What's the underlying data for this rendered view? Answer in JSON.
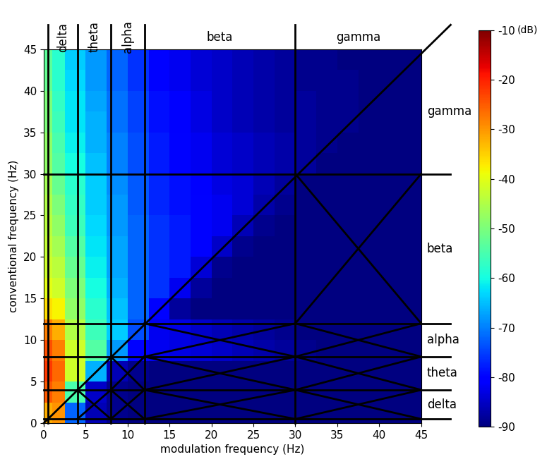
{
  "chart_data": {
    "type": "heatmap",
    "x_label": "modulation frequency (Hz)",
    "y_label": "conventional frequency (Hz)",
    "x_edges": [
      0,
      1,
      2.5,
      5,
      7.5,
      10,
      12.5,
      15,
      17.5,
      20,
      22.5,
      25,
      27.5,
      30,
      32.5,
      35,
      37.5,
      40,
      42.5,
      45
    ],
    "y_edges": [
      0,
      2.5,
      5,
      7.5,
      10,
      12.5,
      15,
      17.5,
      20,
      22.5,
      25,
      27.5,
      30,
      32.5,
      35,
      37.5,
      40,
      42.5,
      45
    ],
    "cells": [
      [
        -32,
        -30,
        -72,
        -86,
        -89,
        -90,
        -90,
        -90,
        -90,
        -90,
        -90,
        -90,
        -90,
        -90,
        -90,
        -90,
        -90,
        -90,
        -90
      ],
      [
        -25,
        -28,
        -55,
        -85,
        -89,
        -90,
        -90,
        -90,
        -90,
        -90,
        -90,
        -90,
        -90,
        -90,
        -90,
        -90,
        -90,
        -90,
        -90
      ],
      [
        -22,
        -26,
        -42,
        -66,
        -86,
        -89,
        -90,
        -90,
        -90,
        -90,
        -90,
        -90,
        -90,
        -90,
        -90,
        -90,
        -90,
        -90,
        -90
      ],
      [
        -24,
        -28,
        -42,
        -54,
        -68,
        -80,
        -82,
        -83,
        -84,
        -85,
        -86,
        -87,
        -88,
        -89,
        -90,
        -90,
        -90,
        -90,
        -90
      ],
      [
        -28,
        -32,
        -45,
        -56,
        -64,
        -74,
        -82,
        -83,
        -85,
        -86,
        -87,
        -88,
        -89,
        -90,
        -90,
        -90,
        -90,
        -90,
        -90
      ],
      [
        -36,
        -38,
        -48,
        -58,
        -65,
        -72,
        -80,
        -88,
        -90,
        -90,
        -90,
        -90,
        -90,
        -90,
        -90,
        -90,
        -90,
        -90,
        -90
      ],
      [
        -40,
        -42,
        -50,
        -60,
        -66,
        -72,
        -76,
        -82,
        -88,
        -90,
        -90,
        -90,
        -90,
        -90,
        -90,
        -90,
        -90,
        -90,
        -90
      ],
      [
        -42,
        -44,
        -52,
        -61,
        -67,
        -72,
        -76,
        -78,
        -84,
        -89,
        -90,
        -90,
        -90,
        -90,
        -90,
        -90,
        -90,
        -90,
        -90
      ],
      [
        -43,
        -46,
        -54,
        -62,
        -67,
        -72,
        -76,
        -78,
        -80,
        -85,
        -89,
        -90,
        -90,
        -90,
        -90,
        -90,
        -90,
        -90,
        -90
      ],
      [
        -44,
        -48,
        -56,
        -63,
        -68,
        -72,
        -76,
        -78,
        -80,
        -82,
        -86,
        -89,
        -90,
        -90,
        -90,
        -90,
        -90,
        -90,
        -90
      ],
      [
        -45,
        -50,
        -57,
        -64,
        -68,
        -73,
        -77,
        -79,
        -80,
        -82,
        -84,
        -87,
        -89,
        -90,
        -90,
        -90,
        -90,
        -90,
        -90
      ],
      [
        -46,
        -52,
        -58,
        -64,
        -69,
        -73,
        -77,
        -79,
        -81,
        -83,
        -84,
        -86,
        -88,
        -90,
        -90,
        -90,
        -90,
        -90,
        -90
      ],
      [
        -48,
        -54,
        -60,
        -65,
        -70,
        -74,
        -78,
        -80,
        -82,
        -84,
        -85,
        -86,
        -87,
        -88,
        -90,
        -90,
        -90,
        -90,
        -90
      ],
      [
        -48,
        -55,
        -61,
        -66,
        -70,
        -74,
        -78,
        -80,
        -82,
        -84,
        -85,
        -86,
        -87,
        -88,
        -89,
        -90,
        -90,
        -90,
        -90
      ],
      [
        -50,
        -56,
        -62,
        -66,
        -71,
        -75,
        -79,
        -81,
        -83,
        -85,
        -86,
        -87,
        -88,
        -88,
        -89,
        -89,
        -90,
        -90,
        -90
      ],
      [
        -50,
        -57,
        -62,
        -67,
        -71,
        -75,
        -79,
        -81,
        -83,
        -85,
        -86,
        -87,
        -88,
        -88,
        -89,
        -89,
        -90,
        -90,
        -90
      ],
      [
        -52,
        -58,
        -63,
        -68,
        -72,
        -76,
        -80,
        -82,
        -84,
        -85,
        -86,
        -87,
        -88,
        -89,
        -89,
        -89,
        -90,
        -90,
        -90
      ],
      [
        -53,
        -58,
        -64,
        -68,
        -72,
        -76,
        -80,
        -82,
        -84,
        -85,
        -86,
        -87,
        -88,
        -89,
        -89,
        -90,
        -90,
        -90,
        -90
      ]
    ],
    "xlim": [
      0,
      45
    ],
    "ylim": [
      0,
      45
    ],
    "xticks": [
      0,
      5,
      10,
      15,
      20,
      25,
      30,
      35,
      40,
      45
    ],
    "yticks": [
      0,
      5,
      10,
      15,
      20,
      25,
      30,
      35,
      40,
      45
    ],
    "colorbar": {
      "range": [
        -90,
        -10
      ],
      "ticks": [
        -90,
        -80,
        -70,
        -60,
        -50,
        -40,
        -30,
        -20,
        -10
      ],
      "label": "(dB)"
    },
    "bands": [
      {
        "name": "delta",
        "range": [
          0.5,
          4
        ]
      },
      {
        "name": "theta",
        "range": [
          4,
          8
        ]
      },
      {
        "name": "alpha",
        "range": [
          8,
          12
        ]
      },
      {
        "name": "beta",
        "range": [
          12,
          30
        ]
      },
      {
        "name": "gamma",
        "range": [
          30,
          45
        ]
      }
    ]
  }
}
